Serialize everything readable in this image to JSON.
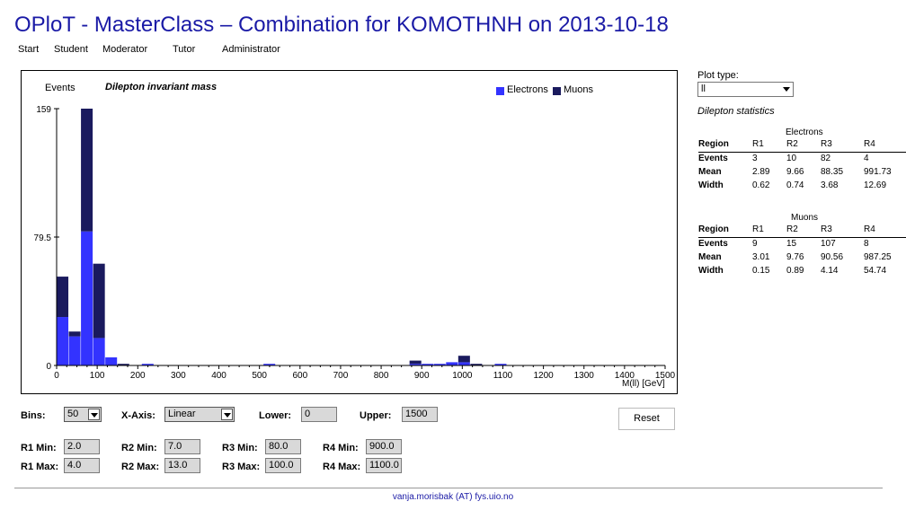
{
  "title": "OPloT - MasterClass – Combination for KOMOTHNH on 2013-10-18",
  "nav": [
    "Start",
    "Student",
    "Moderator",
    "Tutor",
    "Administrator"
  ],
  "plot": {
    "y_axis_label": "Events",
    "title": "Dilepton invariant mass",
    "x_axis_label": "M(ll) [GeV]",
    "legend": [
      {
        "name": "Electrons",
        "color": "#3333ff"
      },
      {
        "name": "Muons",
        "color": "#1a1a5e"
      }
    ]
  },
  "chart_data": {
    "type": "bar",
    "stacked": true,
    "title": "Dilepton invariant mass",
    "xlabel": "M(ll) [GeV]",
    "ylabel": "Events",
    "xlim": [
      0,
      1500
    ],
    "ylim": [
      0,
      159
    ],
    "bin_width": 30,
    "x_ticks": [
      0,
      100,
      200,
      300,
      400,
      500,
      600,
      700,
      800,
      900,
      1000,
      1100,
      1200,
      1300,
      1400,
      1500
    ],
    "y_ticks": [
      0,
      79.5,
      159
    ],
    "y_tick_labels": [
      "0",
      "79.5",
      "159"
    ],
    "x_bin_starts": [
      0,
      30,
      60,
      90,
      120,
      150,
      210,
      510,
      870,
      900,
      930,
      960,
      990,
      1020,
      1050,
      1080
    ],
    "series": [
      {
        "name": "Electrons",
        "color": "#3333ff",
        "values": [
          30,
          18,
          83,
          17,
          5,
          0,
          1,
          1,
          1,
          1,
          1,
          2,
          2,
          0,
          0,
          1
        ]
      },
      {
        "name": "Muons",
        "color": "#1a1a5e",
        "values": [
          25,
          3,
          76,
          46,
          0,
          1,
          0,
          0,
          2,
          0,
          0,
          0,
          4,
          1,
          0,
          0
        ]
      }
    ]
  },
  "controls": {
    "bins_label": "Bins:",
    "bins_value": "50",
    "xaxis_label": "X-Axis:",
    "xaxis_value": "Linear",
    "lower_label": "Lower:",
    "lower_value": "0",
    "upper_label": "Upper:",
    "upper_value": "1500",
    "reset_label": "Reset",
    "r1min_label": "R1 Min:",
    "r1min_value": "2.0",
    "r1max_label": "R1 Max:",
    "r1max_value": "4.0",
    "r2min_label": "R2 Min:",
    "r2min_value": "7.0",
    "r2max_label": "R2 Max:",
    "r2max_value": "13.0",
    "r3min_label": "R3 Min:",
    "r3min_value": "80.0",
    "r3max_label": "R3 Max:",
    "r3max_value": "100.0",
    "r4min_label": "R4 Min:",
    "r4min_value": "900.0",
    "r4max_label": "R4 Max:",
    "r4max_value": "1100.0"
  },
  "side": {
    "plot_type_label": "Plot type:",
    "plot_type_value": "ll",
    "stats_title": "Dilepton statistics",
    "electrons": {
      "title": "Electrons",
      "header": [
        "Region",
        "R1",
        "R2",
        "R3",
        "R4"
      ],
      "rows": [
        [
          "Events",
          "3",
          "10",
          "82",
          "4"
        ],
        [
          "Mean",
          "2.89",
          "9.66",
          "88.35",
          "991.73"
        ],
        [
          "Width",
          "0.62",
          "0.74",
          "3.68",
          "12.69"
        ]
      ]
    },
    "muons": {
      "title": "Muons",
      "header": [
        "Region",
        "R1",
        "R2",
        "R3",
        "R4"
      ],
      "rows": [
        [
          "Events",
          "9",
          "15",
          "107",
          "8"
        ],
        [
          "Mean",
          "3.01",
          "9.76",
          "90.56",
          "987.25"
        ],
        [
          "Width",
          "0.15",
          "0.89",
          "4.14",
          "54.74"
        ]
      ]
    }
  },
  "footer": "vanja.morisbak (AT) fys.uio.no"
}
